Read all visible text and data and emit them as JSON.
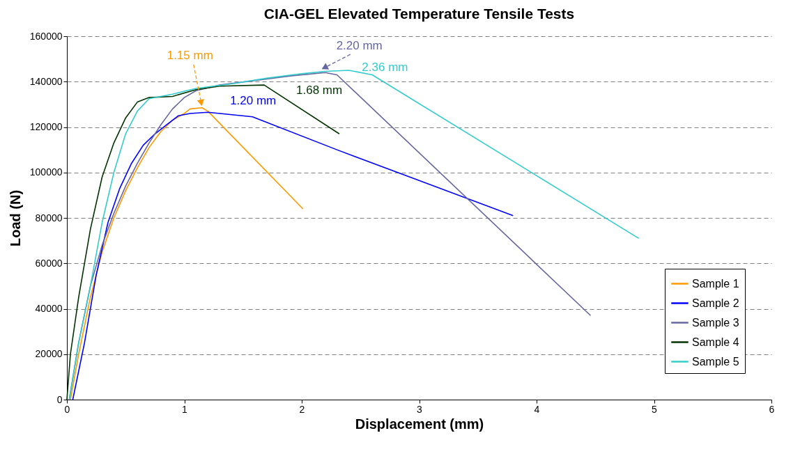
{
  "chart_data": {
    "type": "line",
    "title": "CIA-GEL Elevated Temperature Tensile Tests",
    "xlabel": "Displacement (mm)",
    "ylabel": "Load (N)",
    "xlim": [
      0,
      6
    ],
    "xticks": [
      0,
      1,
      2,
      3,
      4,
      5,
      6
    ],
    "ylim": [
      0,
      160000
    ],
    "yticks": [
      0,
      20000,
      40000,
      60000,
      80000,
      100000,
      120000,
      140000,
      160000
    ],
    "grid": "y",
    "legend": "bottom right",
    "line_style": "solid",
    "marker": "none",
    "series": [
      {
        "name": "Sample 1",
        "color": "#ff9900",
        "x": [
          0.03,
          0.1,
          0.2,
          0.3,
          0.4,
          0.5,
          0.6,
          0.7,
          0.8,
          0.9,
          1.0,
          1.05,
          1.15,
          1.2,
          2.01
        ],
        "values": [
          0,
          20000,
          45000,
          65000,
          80000,
          92000,
          102000,
          111000,
          118000,
          123000,
          126000,
          128000,
          128500,
          127000,
          84000
        ]
      },
      {
        "name": "Sample 2",
        "color": "#0000ff",
        "x": [
          0.05,
          0.15,
          0.25,
          0.35,
          0.45,
          0.55,
          0.65,
          0.75,
          0.85,
          0.95,
          1.05,
          1.2,
          1.58,
          2.3,
          3.8
        ],
        "values": [
          0,
          25000,
          55000,
          78000,
          93000,
          104000,
          112000,
          117000,
          121000,
          125000,
          126000,
          126500,
          124500,
          110000,
          81000
        ]
      },
      {
        "name": "Sample 3",
        "color": "#6666a0",
        "x": [
          0.02,
          0.1,
          0.2,
          0.3,
          0.4,
          0.5,
          0.6,
          0.7,
          0.8,
          0.9,
          1.0,
          1.1,
          1.3,
          1.6,
          1.9,
          2.2,
          2.3,
          4.46
        ],
        "values": [
          0,
          25000,
          50000,
          68000,
          82000,
          94000,
          104000,
          113000,
          121000,
          128000,
          133000,
          136000,
          138500,
          140500,
          142500,
          144000,
          143000,
          37000
        ]
      },
      {
        "name": "Sample 4",
        "color": "#003300",
        "x": [
          0,
          0.03,
          0.1,
          0.2,
          0.3,
          0.4,
          0.5,
          0.6,
          0.7,
          0.9,
          1.1,
          1.3,
          1.68,
          2.32
        ],
        "values": [
          0,
          20000,
          45000,
          75000,
          98000,
          113000,
          124000,
          131000,
          133000,
          133500,
          136500,
          138000,
          138500,
          117000
        ]
      },
      {
        "name": "Sample 5",
        "color": "#33cccc",
        "x": [
          0.02,
          0.1,
          0.2,
          0.3,
          0.4,
          0.5,
          0.6,
          0.7,
          0.9,
          1.1,
          1.4,
          1.7,
          2.0,
          2.2,
          2.4,
          2.6,
          4.87
        ],
        "values": [
          0,
          25000,
          50000,
          78000,
          100000,
          117000,
          127000,
          132500,
          134500,
          137000,
          139000,
          141500,
          143500,
          144500,
          145000,
          143000,
          71000
        ]
      }
    ],
    "annotations": [
      {
        "text": "1.15 mm",
        "x": 1.15,
        "y": 128500
      },
      {
        "text": "1.20 mm",
        "x": 1.2,
        "y": 126500
      },
      {
        "text": "1.68 mm",
        "x": 1.68,
        "y": 138500
      },
      {
        "text": "2.20 mm",
        "x": 2.2,
        "y": 144000
      },
      {
        "text": "2.36 mm",
        "x": 2.4,
        "y": 145000
      }
    ]
  }
}
